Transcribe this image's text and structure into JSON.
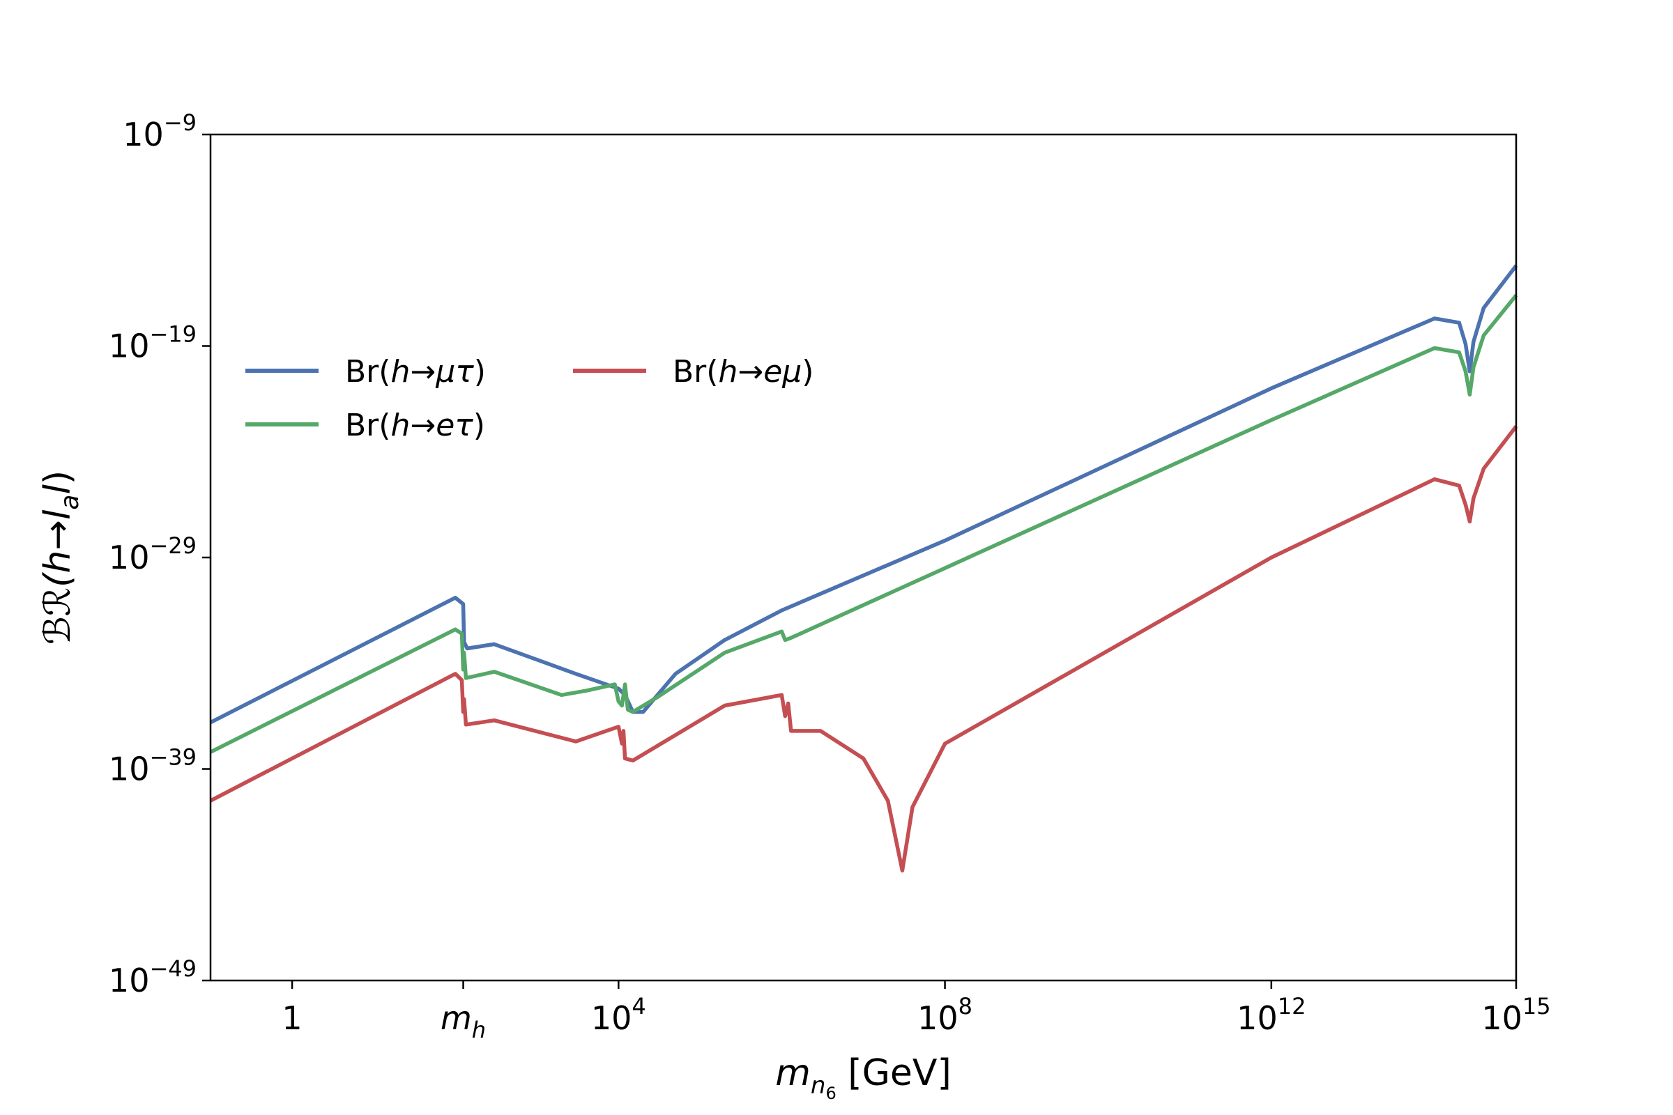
{
  "chart_data": {
    "type": "line",
    "xscale": "log",
    "yscale": "log",
    "xlim": [
      0.1,
      1000000000000000.0
    ],
    "ylim": [
      1e-49,
      1e-09
    ],
    "xticks": [
      {
        "value": 1,
        "base": "1",
        "exp": ""
      },
      {
        "value": 125,
        "base": "m",
        "sub": "h",
        "italic": true
      },
      {
        "value": 10000,
        "base": "10",
        "exp": "4"
      },
      {
        "value": 100000000.0,
        "base": "10",
        "exp": "8"
      },
      {
        "value": 1000000000000.0,
        "base": "10",
        "exp": "12"
      },
      {
        "value": 1000000000000000.0,
        "base": "10",
        "exp": "15"
      }
    ],
    "yticks": [
      {
        "value": 1e-49,
        "base": "10",
        "exp": "−49"
      },
      {
        "value": 1e-39,
        "base": "10",
        "exp": "−39"
      },
      {
        "value": 1e-29,
        "base": "10",
        "exp": "−29"
      },
      {
        "value": 1e-19,
        "base": "10",
        "exp": "−19"
      },
      {
        "value": 1e-09,
        "base": "10",
        "exp": "−9"
      }
    ],
    "xlabel": {
      "main": "m",
      "sub": "n",
      "subsub": "6",
      "unit": " [GeV]"
    },
    "ylabel": {
      "prefix": "ℬℛ(",
      "h": "h",
      "arrow": "→",
      "l1": "l",
      "a": "a",
      "l2": "l",
      "suffix": ")"
    },
    "legend_position": "upper-left",
    "series": [
      {
        "name": "Br(h→μτ)",
        "label_parts": {
          "pre": "Br(",
          "h": "h",
          "arrow": "→",
          "final": "μτ",
          "post": ")"
        },
        "color": "#4c72b0",
        "points": [
          [
            0.1,
            -36.8
          ],
          [
            100,
            -30.9
          ],
          [
            125,
            -31.2
          ],
          [
            128,
            -33.0
          ],
          [
            140,
            -33.3
          ],
          [
            300,
            -33.1
          ],
          [
            3000,
            -34.5
          ],
          [
            10000,
            -35.2
          ],
          [
            12000,
            -35.5
          ],
          [
            15000,
            -36.3
          ],
          [
            20000,
            -36.3
          ],
          [
            50000,
            -34.5
          ],
          [
            200000,
            -32.9
          ],
          [
            1000000,
            -31.5
          ],
          [
            100000000.0,
            -28.2
          ],
          [
            1000000000000.0,
            -21.0
          ],
          [
            100000000000000.0,
            -17.7
          ],
          [
            200000000000000.0,
            -17.9
          ],
          [
            240000000000000.0,
            -18.9
          ],
          [
            270000000000000.0,
            -20.2
          ],
          [
            300000000000000.0,
            -18.8
          ],
          [
            400000000000000.0,
            -17.2
          ],
          [
            1000000000000000.0,
            -15.2
          ]
        ]
      },
      {
        "name": "Br(h→eτ)",
        "label_parts": {
          "pre": "Br(",
          "h": "h",
          "arrow": "→",
          "final": "eτ",
          "post": ")"
        },
        "color": "#55a868",
        "points": [
          [
            0.1,
            -38.2
          ],
          [
            100,
            -32.4
          ],
          [
            120,
            -32.6
          ],
          [
            125,
            -34.3
          ],
          [
            128,
            -33.5
          ],
          [
            135,
            -34.7
          ],
          [
            300,
            -34.4
          ],
          [
            2000,
            -35.5
          ],
          [
            4000,
            -35.3
          ],
          [
            9000,
            -35.0
          ],
          [
            10000,
            -35.8
          ],
          [
            11000,
            -36.0
          ],
          [
            12000,
            -35.0
          ],
          [
            13000,
            -36.2
          ],
          [
            15000,
            -36.3
          ],
          [
            30000,
            -35.6
          ],
          [
            200000,
            -33.5
          ],
          [
            1000000,
            -32.5
          ],
          [
            1100000,
            -32.9
          ],
          [
            1300000,
            -32.8
          ],
          [
            100000000.0,
            -29.5
          ],
          [
            1000000000000.0,
            -22.5
          ],
          [
            100000000000000.0,
            -19.1
          ],
          [
            200000000000000.0,
            -19.3
          ],
          [
            240000000000000.0,
            -20.2
          ],
          [
            270000000000000.0,
            -21.3
          ],
          [
            300000000000000.0,
            -20.0
          ],
          [
            400000000000000.0,
            -18.5
          ],
          [
            1000000000000000.0,
            -16.6
          ]
        ]
      },
      {
        "name": "Br(h→eμ)",
        "label_parts": {
          "pre": "Br(",
          "h": "h",
          "arrow": "→",
          "final": "eμ",
          "post": ")"
        },
        "color": "#c44e52",
        "points": [
          [
            0.1,
            -40.5
          ],
          [
            100,
            -34.5
          ],
          [
            120,
            -34.8
          ],
          [
            125,
            -36.3
          ],
          [
            128,
            -35.7
          ],
          [
            135,
            -36.9
          ],
          [
            300,
            -36.7
          ],
          [
            3000,
            -37.7
          ],
          [
            10000,
            -37.0
          ],
          [
            11000,
            -37.8
          ],
          [
            11500,
            -37.2
          ],
          [
            12000,
            -38.5
          ],
          [
            15000,
            -38.6
          ],
          [
            200000,
            -36.0
          ],
          [
            1000000,
            -35.5
          ],
          [
            1100000,
            -36.5
          ],
          [
            1200000,
            -35.9
          ],
          [
            1300000,
            -37.2
          ],
          [
            3000000,
            -37.2
          ],
          [
            10000000,
            -38.5
          ],
          [
            20000000,
            -40.5
          ],
          [
            30000000,
            -43.8
          ],
          [
            40000000,
            -40.8
          ],
          [
            100000000,
            -37.8
          ],
          [
            1000000000000.0,
            -29.0
          ],
          [
            100000000000000.0,
            -25.3
          ],
          [
            200000000000000.0,
            -25.6
          ],
          [
            240000000000000.0,
            -26.5
          ],
          [
            270000000000000.0,
            -27.3
          ],
          [
            300000000000000.0,
            -26.2
          ],
          [
            400000000000000.0,
            -24.8
          ],
          [
            1000000000000000.0,
            -22.8
          ]
        ]
      }
    ]
  }
}
